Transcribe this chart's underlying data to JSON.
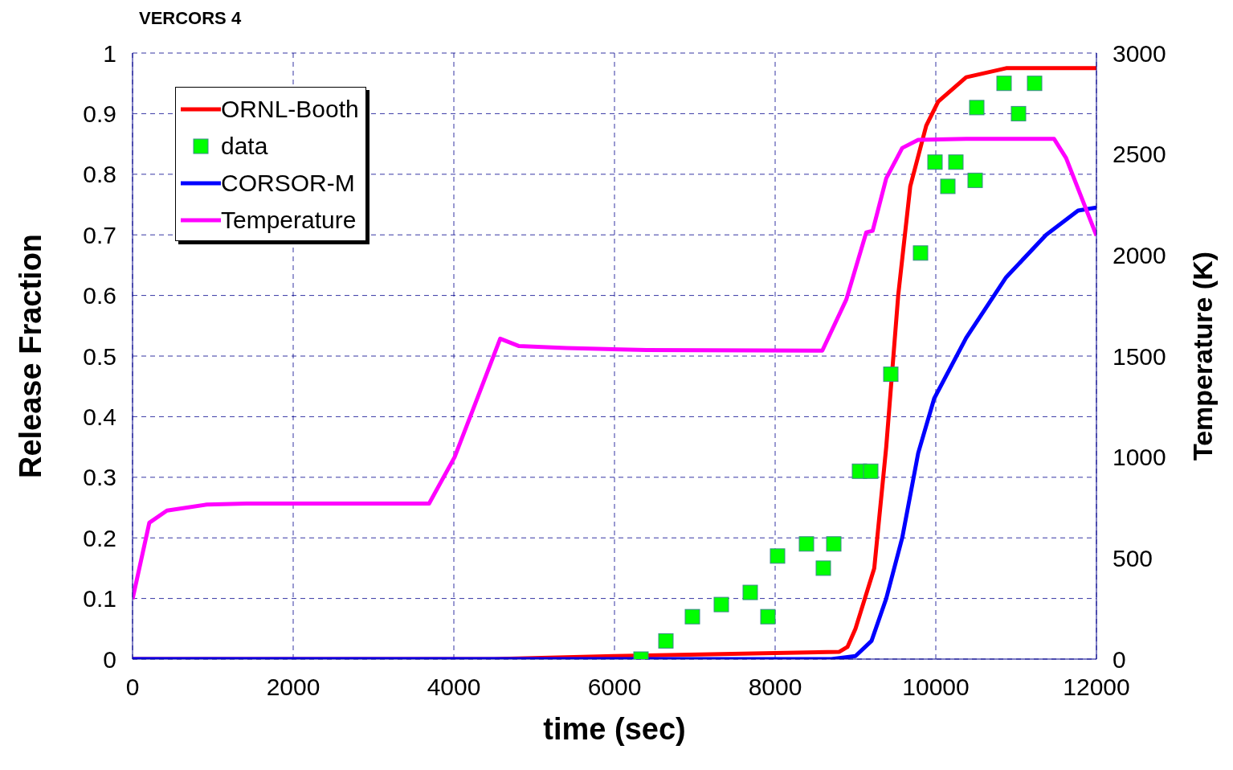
{
  "chart_data": {
    "type": "line",
    "title": "VERCORS 4",
    "xlabel": "time (sec)",
    "ylabel": "Release Fraction",
    "y2label": "Temperature (K)",
    "xlim": [
      0,
      12000
    ],
    "xticks": [
      0,
      2000,
      4000,
      6000,
      8000,
      10000,
      12000
    ],
    "ylim": [
      0,
      1
    ],
    "yticks": [
      0,
      0.1,
      0.2,
      0.3,
      0.4,
      0.5,
      0.6,
      0.7,
      0.8,
      0.9,
      1
    ],
    "y2lim": [
      0,
      3000
    ],
    "y2ticks": [
      0,
      500,
      1000,
      1500,
      2000,
      2500,
      3000
    ],
    "grid": true,
    "legend": "top left",
    "marker": "none",
    "line_style": "solid",
    "series": [
      {
        "name": "ORNL-Booth",
        "color": "#ff0000",
        "x": [
          0,
          4500,
          6000,
          8000,
          8800,
          8900,
          9000,
          9234,
          9383,
          9532,
          9682,
          9881,
          10030,
          10378,
          10876,
          12000
        ],
        "values": [
          0,
          0,
          0.005,
          0.01,
          0.012,
          0.02,
          0.05,
          0.15,
          0.35,
          0.6,
          0.78,
          0.88,
          0.92,
          0.96,
          0.975,
          0.975
        ]
      },
      {
        "name": "data",
        "color": "#00ff00",
        "type": "scatter",
        "marker": "square",
        "x": [
          6330,
          6640,
          6970,
          7330,
          7690,
          7910,
          8030,
          8390,
          8600,
          8730,
          9050,
          9190,
          9440,
          9810,
          9990,
          10150,
          10250,
          10490,
          10510,
          10850,
          11030,
          11230
        ],
        "values": [
          0,
          0.03,
          0.07,
          0.09,
          0.11,
          0.07,
          0.17,
          0.19,
          0.15,
          0.19,
          0.31,
          0.31,
          0.47,
          0.67,
          0.82,
          0.78,
          0.82,
          0.79,
          0.91,
          0.95,
          0.9,
          0.95
        ]
      },
      {
        "name": "CORSOR-M",
        "color": "#0000ff",
        "x": [
          0,
          8700,
          9000,
          9200,
          9383,
          9582,
          9781,
          9980,
          10378,
          10876,
          11373,
          11771,
          12000
        ],
        "values": [
          0,
          0,
          0.005,
          0.03,
          0.1,
          0.2,
          0.34,
          0.43,
          0.53,
          0.63,
          0.7,
          0.74,
          0.745
        ]
      },
      {
        "name": "Temperature",
        "color": "#ff00ff",
        "axis": "y2",
        "x": [
          0,
          209,
          428,
          925,
          1418,
          3692,
          4010,
          4209,
          4577,
          4806,
          5403,
          6398,
          8587,
          8886,
          9134,
          9214,
          9383,
          9582,
          9781,
          10378,
          11473,
          11622,
          12000
        ],
        "values": [
          297,
          675,
          735,
          765,
          770,
          770,
          1000,
          1205,
          1586,
          1550,
          1540,
          1530,
          1527,
          1780,
          2112,
          2120,
          2380,
          2530,
          2570,
          2575,
          2575,
          2480,
          2096
        ]
      }
    ]
  }
}
